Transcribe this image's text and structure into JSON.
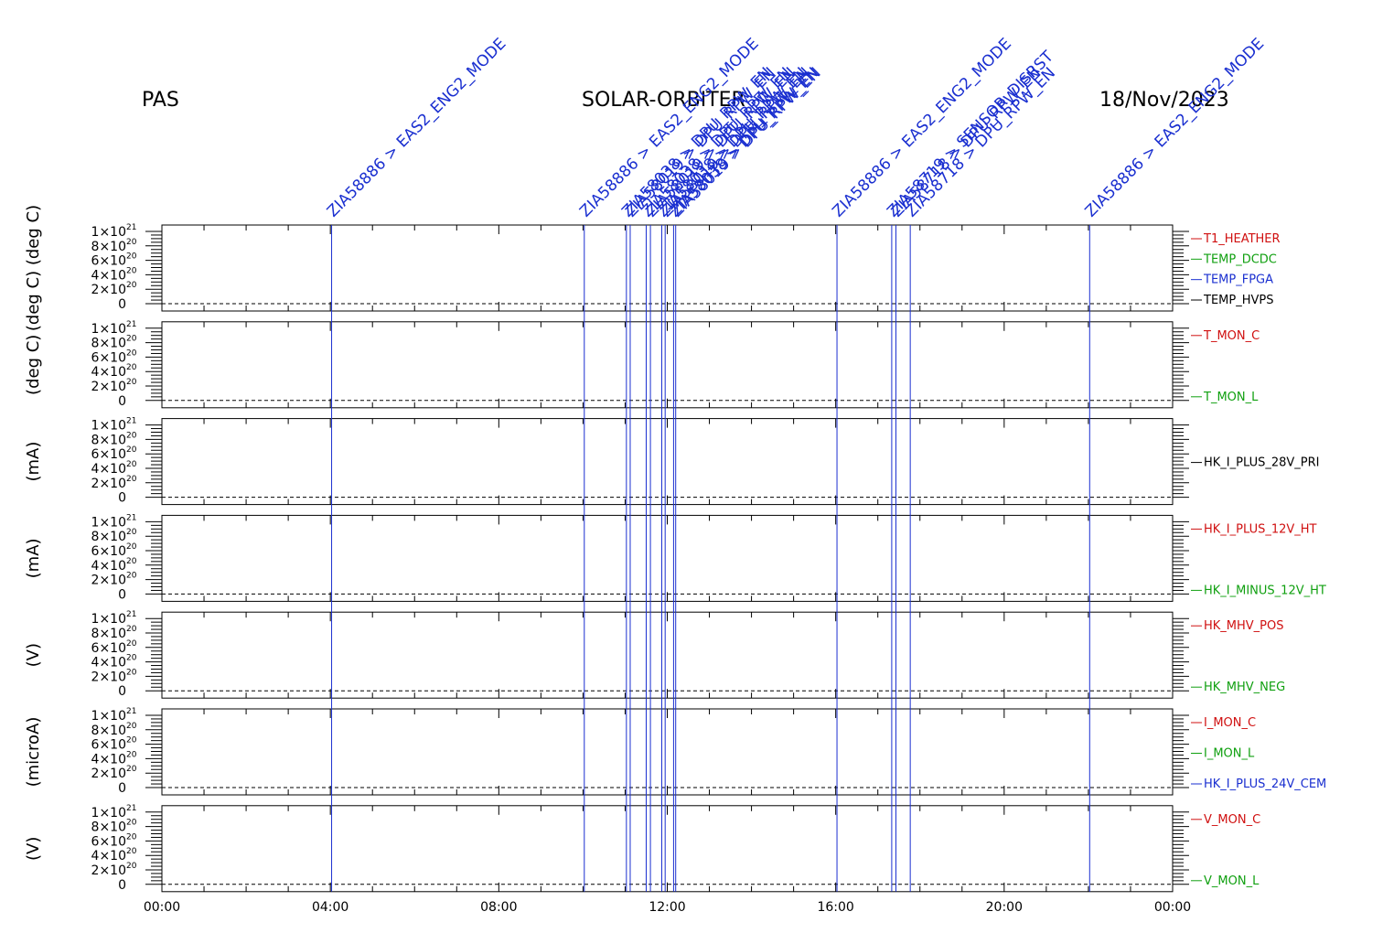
{
  "header": {
    "instrument": "PAS",
    "mission": "SOLAR-ORBITER",
    "date": "18/Nov/2023"
  },
  "chart_data": {
    "type": "line",
    "x_range_hours": [
      0,
      24
    ],
    "x_ticks": [
      "00:00",
      "04:00",
      "08:00",
      "12:00",
      "16:00",
      "20:00",
      "00:00"
    ],
    "y_range": [
      0,
      1e+21
    ],
    "y_ticks": [
      {
        "mant": "0",
        "exp": ""
      },
      {
        "mant": "2×10",
        "exp": "20"
      },
      {
        "mant": "4×10",
        "exp": "20"
      },
      {
        "mant": "6×10",
        "exp": "20"
      },
      {
        "mant": "8×10",
        "exp": "20"
      },
      {
        "mant": "1×10",
        "exp": "21"
      }
    ],
    "panels": [
      {
        "ylabel": "(deg C)  (deg C)",
        "legend": [
          {
            "name": "T1_HEATHER",
            "color": "#d01010"
          },
          {
            "name": "TEMP_DCDC",
            "color": "#10a010"
          },
          {
            "name": "TEMP_FPGA",
            "color": "#1a2fd0"
          },
          {
            "name": "TEMP_HVPS",
            "color": "#000000"
          }
        ]
      },
      {
        "ylabel": "(deg C)",
        "legend": [
          {
            "name": "T_MON_C",
            "color": "#d01010"
          },
          {
            "name": "T_MON_L",
            "color": "#10a010"
          }
        ]
      },
      {
        "ylabel": "(mA)",
        "legend": [
          {
            "name": "HK_I_PLUS_28V_PRI",
            "color": "#000000"
          }
        ]
      },
      {
        "ylabel": "(mA)",
        "legend": [
          {
            "name": "HK_I_PLUS_12V_HT",
            "color": "#d01010"
          },
          {
            "name": "HK_I_MINUS_12V_HT",
            "color": "#10a010"
          }
        ]
      },
      {
        "ylabel": "(V)",
        "legend": [
          {
            "name": "HK_MHV_POS",
            "color": "#d01010"
          },
          {
            "name": "HK_MHV_NEG",
            "color": "#10a010"
          }
        ]
      },
      {
        "ylabel": "(microA)",
        "legend": [
          {
            "name": "I_MON_C",
            "color": "#d01010"
          },
          {
            "name": "I_MON_L",
            "color": "#10a010"
          },
          {
            "name": "HK_I_PLUS_24V_CEM",
            "color": "#1a2fd0"
          }
        ]
      },
      {
        "ylabel": "(V)",
        "legend": [
          {
            "name": "V_MON_C",
            "color": "#d01010"
          },
          {
            "name": "V_MON_L",
            "color": "#10a010"
          }
        ]
      }
    ],
    "events": [
      {
        "time_h": 4.03,
        "label": "ZIA58886 > EAS2_ENG2_MODE"
      },
      {
        "time_h": 10.03,
        "label": "ZIA58886 > EAS2_ENG2_MODE"
      },
      {
        "time_h": 11.03,
        "label": "ZIA58038 > DPU_RPW_EN"
      },
      {
        "time_h": 11.12,
        "label": "ZIA58019 > DPU_RPW_EN"
      },
      {
        "time_h": 11.5,
        "label": "ZIA58038 > DPU_RPW_EN"
      },
      {
        "time_h": 11.6,
        "label": "ZIA58019 > DPU_RPW_EN"
      },
      {
        "time_h": 11.87,
        "label": "ZIA58038 > DPU_RPW_EN"
      },
      {
        "time_h": 11.95,
        "label": "ZIA58019 > DPU_RPW_EN"
      },
      {
        "time_h": 12.15,
        "label": "ZIA58038 > DPU_RPW_EN"
      },
      {
        "time_h": 12.2,
        "label": "ZIA58019 > DPU_RPW_EN"
      },
      {
        "time_h": 16.03,
        "label": "ZIA58886 > EAS2_ENG2_MODE"
      },
      {
        "time_h": 17.33,
        "label": "ZIA58719 > SENSOR_DISRST"
      },
      {
        "time_h": 17.43,
        "label": "ZIA58718 > DPU_RPW_EN"
      },
      {
        "time_h": 17.77,
        "label": "ZIA58718 > DPU_RPW_EN"
      },
      {
        "time_h": 22.03,
        "label": "ZIA58886 > EAS2_ENG2_MODE"
      }
    ]
  }
}
